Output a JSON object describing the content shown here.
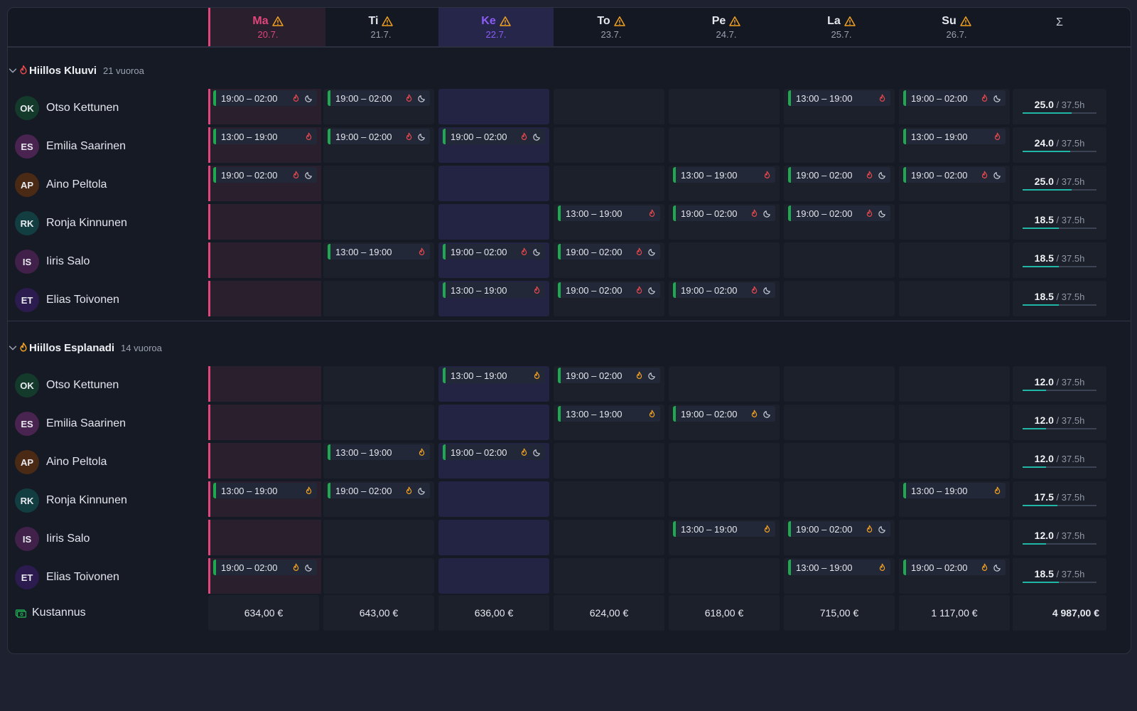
{
  "days": [
    {
      "name": "Ma",
      "date": "20.7.",
      "state": "today"
    },
    {
      "name": "Ti",
      "date": "21.7.",
      "state": ""
    },
    {
      "name": "Ke",
      "date": "22.7.",
      "state": "sel"
    },
    {
      "name": "To",
      "date": "23.7.",
      "state": ""
    },
    {
      "name": "Pe",
      "date": "24.7.",
      "state": ""
    },
    {
      "name": "La",
      "date": "25.7.",
      "state": ""
    },
    {
      "name": "Su",
      "date": "26.7.",
      "state": ""
    }
  ],
  "total_header": "Σ",
  "groups": [
    {
      "name": "Hiillos Kluuvi",
      "count": "21 vuoroa",
      "icon_color": "#e5484d",
      "people": [
        {
          "initials": "OK",
          "name": "Otso Kettunen",
          "avatar_bg": "#143a2b",
          "total": "25.0",
          "target": "/ 37.5h",
          "fill": 0.667,
          "shifts": [
            "19:00 – 02:00",
            "19:00 – 02:00",
            "",
            "",
            "",
            "13:00 – 19:00",
            "19:00 – 02:00"
          ]
        },
        {
          "initials": "ES",
          "name": "Emilia Saarinen",
          "avatar_bg": "#4a2450",
          "total": "24.0",
          "target": "/ 37.5h",
          "fill": 0.64,
          "shifts": [
            "13:00 – 19:00",
            "19:00 – 02:00",
            "19:00 – 02:00",
            "",
            "",
            "",
            "13:00 – 19:00"
          ]
        },
        {
          "initials": "AP",
          "name": "Aino Peltola",
          "avatar_bg": "#4a2a14",
          "total": "25.0",
          "target": "/ 37.5h",
          "fill": 0.667,
          "shifts": [
            "19:00 – 02:00",
            "",
            "",
            "",
            "13:00 – 19:00",
            "19:00 – 02:00",
            "19:00 – 02:00"
          ]
        },
        {
          "initials": "RK",
          "name": "Ronja Kinnunen",
          "avatar_bg": "#123e42",
          "total": "18.5",
          "target": "/ 37.5h",
          "fill": 0.493,
          "shifts": [
            "",
            "",
            "",
            "13:00 – 19:00",
            "19:00 – 02:00",
            "19:00 – 02:00",
            ""
          ]
        },
        {
          "initials": "IS",
          "name": "Iiris Salo",
          "avatar_bg": "#41204a",
          "total": "18.5",
          "target": "/ 37.5h",
          "fill": 0.493,
          "shifts": [
            "",
            "13:00 – 19:00",
            "19:00 – 02:00",
            "19:00 – 02:00",
            "",
            "",
            ""
          ]
        },
        {
          "initials": "ET",
          "name": "Elias Toivonen",
          "avatar_bg": "#2c1b4e",
          "total": "18.5",
          "target": "/ 37.5h",
          "fill": 0.493,
          "shifts": [
            "",
            "",
            "13:00 – 19:00",
            "19:00 – 02:00",
            "19:00 – 02:00",
            "",
            ""
          ]
        }
      ]
    },
    {
      "name": "Hiillos Esplanadi",
      "count": "14 vuoroa",
      "icon_color": "#f0a020",
      "people": [
        {
          "initials": "OK",
          "name": "Otso Kettunen",
          "avatar_bg": "#143a2b",
          "total": "12.0",
          "target": "/ 37.5h",
          "fill": 0.32,
          "shifts": [
            "",
            "",
            "13:00 – 19:00",
            "19:00 – 02:00",
            "",
            "",
            ""
          ]
        },
        {
          "initials": "ES",
          "name": "Emilia Saarinen",
          "avatar_bg": "#4a2450",
          "total": "12.0",
          "target": "/ 37.5h",
          "fill": 0.32,
          "shifts": [
            "",
            "",
            "",
            "13:00 – 19:00",
            "19:00 – 02:00",
            "",
            ""
          ]
        },
        {
          "initials": "AP",
          "name": "Aino Peltola",
          "avatar_bg": "#4a2a14",
          "total": "12.0",
          "target": "/ 37.5h",
          "fill": 0.32,
          "shifts": [
            "",
            "13:00 – 19:00",
            "19:00 – 02:00",
            "",
            "",
            "",
            ""
          ]
        },
        {
          "initials": "RK",
          "name": "Ronja Kinnunen",
          "avatar_bg": "#123e42",
          "total": "17.5",
          "target": "/ 37.5h",
          "fill": 0.467,
          "shifts": [
            "13:00 – 19:00",
            "19:00 – 02:00",
            "",
            "",
            "",
            "",
            "13:00 – 19:00"
          ]
        },
        {
          "initials": "IS",
          "name": "Iiris Salo",
          "avatar_bg": "#41204a",
          "total": "12.0",
          "target": "/ 37.5h",
          "fill": 0.32,
          "shifts": [
            "",
            "",
            "",
            "",
            "13:00 – 19:00",
            "19:00 – 02:00",
            ""
          ]
        },
        {
          "initials": "ET",
          "name": "Elias Toivonen",
          "avatar_bg": "#2c1b4e",
          "total": "18.5",
          "target": "/ 37.5h",
          "fill": 0.493,
          "shifts": [
            "19:00 – 02:00",
            "",
            "",
            "",
            "",
            "13:00 – 19:00",
            "19:00 – 02:00"
          ]
        }
      ]
    }
  ],
  "cost": {
    "label": "Kustannus",
    "values": [
      "634,00 €",
      "643,00 €",
      "636,00 €",
      "624,00 €",
      "618,00 €",
      "715,00 €",
      "1 117,00 €"
    ],
    "total": "4 987,00 €"
  },
  "colors": {
    "today": "#e0457b",
    "selected": "#8b5cf6",
    "shift_accent": "#1fa84f",
    "warning": "#f0a020",
    "progress": "#1fb6a8"
  }
}
